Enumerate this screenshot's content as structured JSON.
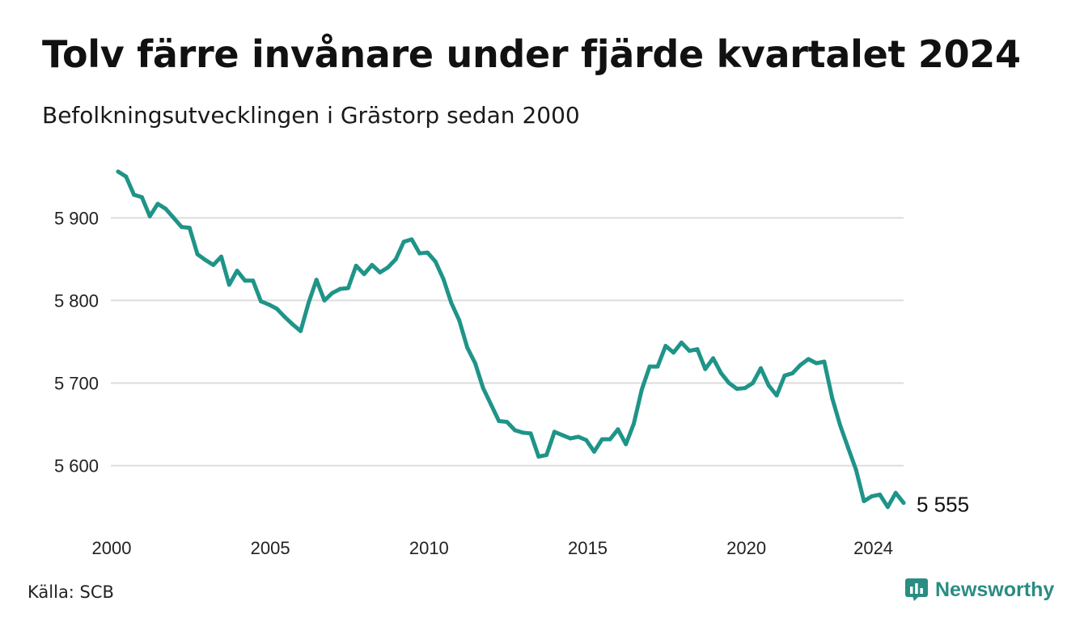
{
  "title": "Tolv färre invånare under fjärde kvartalet 2024",
  "subtitle": "Befolkningsutvecklingen i Grästorp sedan 2000",
  "source": "Källa: SCB",
  "brand": {
    "name": "Newsworthy",
    "icon": "newsworthy-logo-icon",
    "color": "#2a8c82"
  },
  "chart_data": {
    "type": "line",
    "line_color": "#1f9488",
    "grid": true,
    "ylim": [
      5535,
      5963
    ],
    "xlim": [
      2000,
      2024.75
    ],
    "y_ticks": [
      5600,
      5700,
      5800,
      5900
    ],
    "y_tick_labels": [
      "5 600",
      "5 700",
      "5 800",
      "5 900"
    ],
    "x_ticks": [
      2000,
      2005,
      2010,
      2015,
      2020,
      2024
    ],
    "x_tick_labels": [
      "2000",
      "2005",
      "2010",
      "2015",
      "2020",
      "2024"
    ],
    "end_label": "5 555",
    "x": [
      2000,
      2000.25,
      2000.5,
      2000.75,
      2001,
      2001.25,
      2001.5,
      2001.75,
      2002,
      2002.25,
      2002.5,
      2002.75,
      2003,
      2003.25,
      2003.5,
      2003.75,
      2004,
      2004.25,
      2004.5,
      2004.75,
      2005,
      2005.25,
      2005.5,
      2005.75,
      2006,
      2006.25,
      2006.5,
      2006.75,
      2007,
      2007.25,
      2007.5,
      2007.75,
      2008,
      2008.25,
      2008.5,
      2008.75,
      2009,
      2009.25,
      2009.5,
      2009.75,
      2010,
      2010.25,
      2010.5,
      2010.75,
      2011,
      2011.25,
      2011.5,
      2011.75,
      2012,
      2012.25,
      2012.5,
      2012.75,
      2013,
      2013.25,
      2013.5,
      2013.75,
      2014,
      2014.25,
      2014.5,
      2014.75,
      2015,
      2015.25,
      2015.5,
      2015.75,
      2016,
      2016.25,
      2016.5,
      2016.75,
      2017,
      2017.25,
      2017.5,
      2017.75,
      2018,
      2018.25,
      2018.5,
      2018.75,
      2019,
      2019.25,
      2019.5,
      2019.75,
      2020,
      2020.25,
      2020.5,
      2020.75,
      2021,
      2021.25,
      2021.5,
      2021.75,
      2022,
      2022.25,
      2022.5,
      2022.75,
      2023,
      2023.25,
      2023.5,
      2023.75,
      2024,
      2024.25,
      2024.5,
      2024.75
    ],
    "series": [
      {
        "values": [
          5956,
          5950,
          5928,
          5925,
          5902,
          5917,
          5911,
          5900,
          5889,
          5888,
          5856,
          5849,
          5843,
          5853,
          5819,
          5836,
          5824,
          5824,
          5799,
          5795,
          5790,
          5780,
          5771,
          5763,
          5797,
          5825,
          5800,
          5809,
          5814,
          5815,
          5842,
          5832,
          5843,
          5834,
          5840,
          5850,
          5871,
          5874,
          5857,
          5858,
          5847,
          5826,
          5797,
          5776,
          5743,
          5724,
          5694,
          5674,
          5654,
          5653,
          5643,
          5640,
          5639,
          5611,
          5613,
          5641,
          5637,
          5633,
          5635,
          5631,
          5617,
          5632,
          5632,
          5644,
          5626,
          5651,
          5692,
          5720,
          5720,
          5745,
          5737,
          5749,
          5739,
          5741,
          5717,
          5730,
          5712,
          5700,
          5693,
          5694,
          5700,
          5718,
          5697,
          5685,
          5709,
          5712,
          5722,
          5729,
          5724,
          5726,
          5682,
          5649,
          5622,
          5595,
          5557,
          5563,
          5565,
          5550,
          5567,
          5555
        ]
      }
    ]
  }
}
